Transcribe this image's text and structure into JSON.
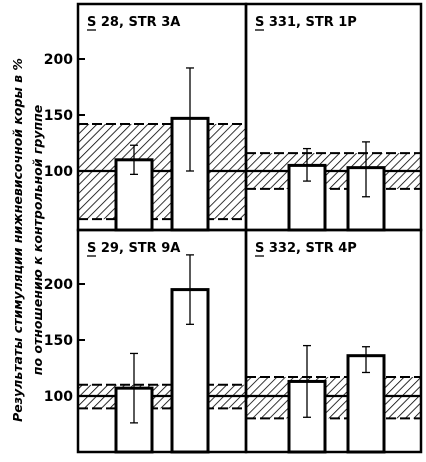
{
  "ylabel_line1": "Результаты стимуляции нижневисочной коры в %",
  "ylabel_line2": "по отношению к контрольной группе",
  "chart_data": [
    {
      "type": "bar",
      "title": "S 28, STR 3A",
      "yticks": [
        100,
        150,
        200
      ],
      "ylim": [
        50,
        240
      ],
      "values": [
        110,
        147
      ],
      "errors": [
        [
          97,
          123
        ],
        [
          100,
          192
        ]
      ],
      "band": [
        57,
        142
      ],
      "band_mean": 100
    },
    {
      "type": "bar",
      "title": "S 331, STR 1P",
      "yticks": [],
      "ylim": [
        50,
        240
      ],
      "values": [
        105,
        103
      ],
      "errors": [
        [
          91,
          120
        ],
        [
          77,
          126
        ]
      ],
      "band": [
        84,
        116
      ],
      "band_mean": 100
    },
    {
      "type": "bar",
      "title": "S 29, STR 9A",
      "yticks": [
        100,
        150,
        200
      ],
      "ylim": [
        50,
        240
      ],
      "values": [
        107,
        195
      ],
      "errors": [
        [
          76,
          138
        ],
        [
          164,
          226
        ]
      ],
      "band": [
        89,
        110
      ],
      "band_mean": 100
    },
    {
      "type": "bar",
      "title": "S 332, STR 4P",
      "yticks": [],
      "ylim": [
        50,
        240
      ],
      "values": [
        113,
        136
      ],
      "errors": [
        [
          81,
          145
        ],
        [
          121,
          144
        ]
      ],
      "band": [
        80,
        117
      ],
      "band_mean": 100
    }
  ]
}
